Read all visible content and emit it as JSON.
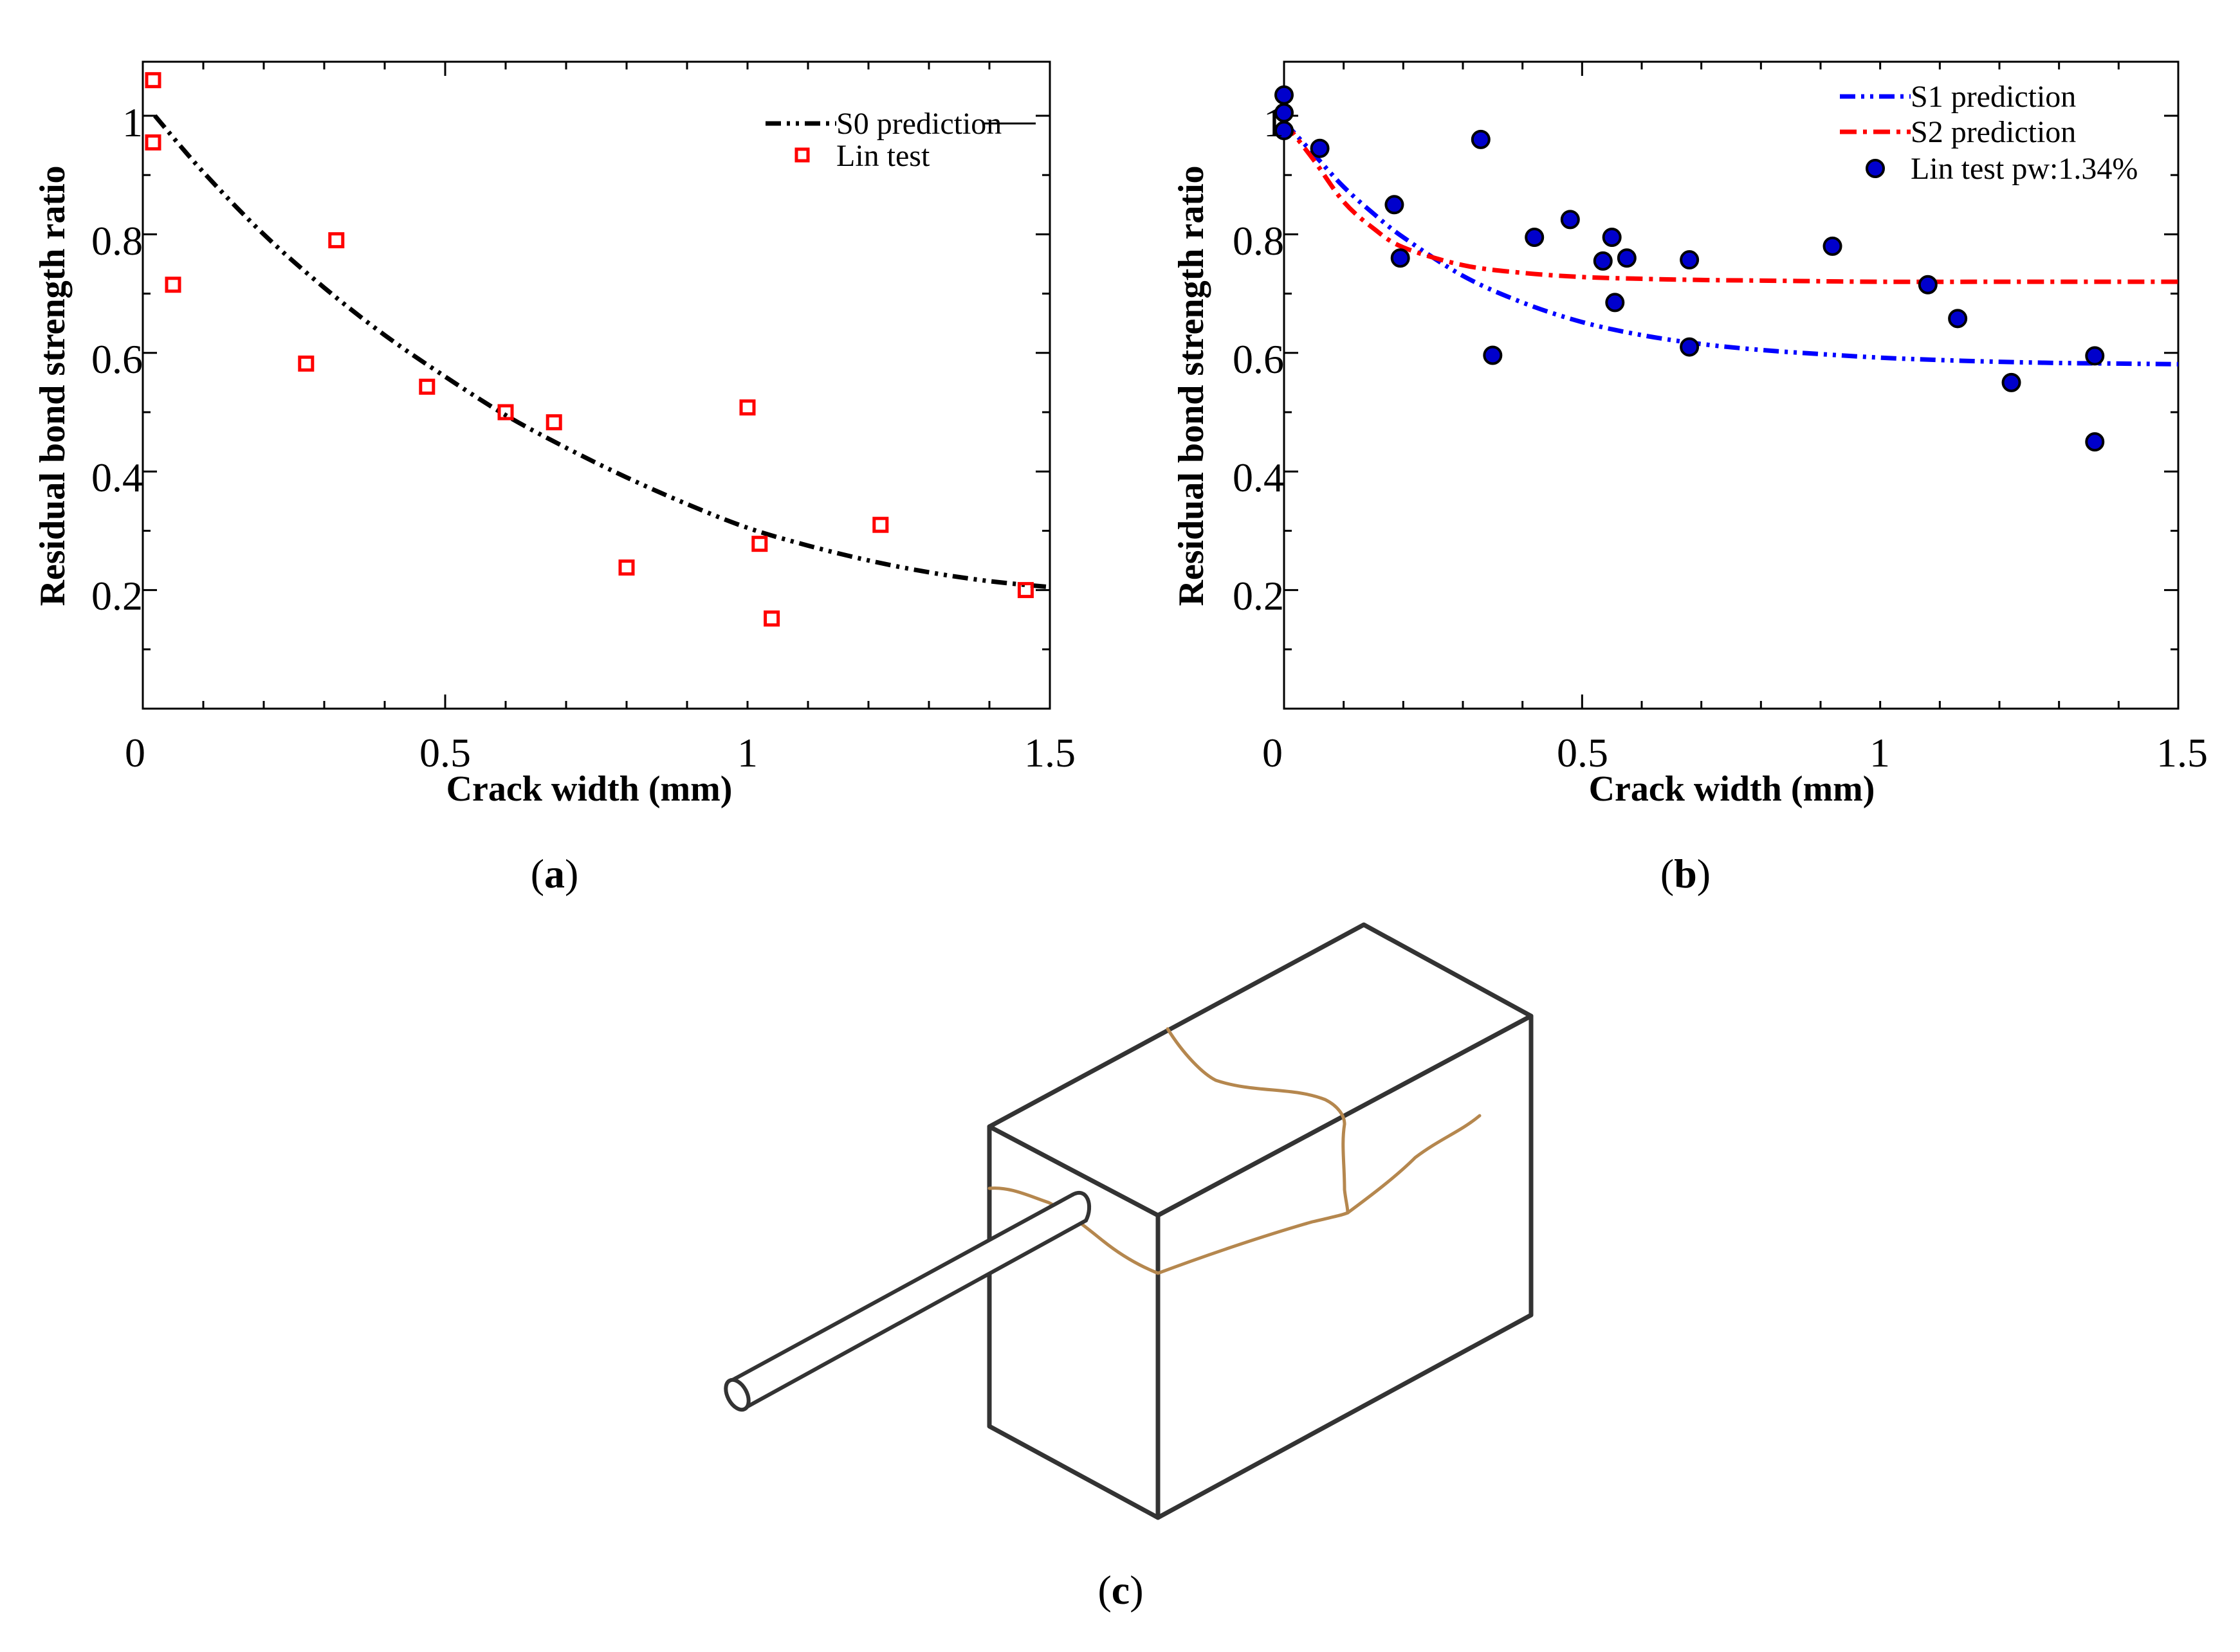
{
  "panels": {
    "a": {
      "label_open": "(",
      "label_letter": "a",
      "label_close": ")"
    },
    "b": {
      "label_open": "(",
      "label_letter": "b",
      "label_close": ")"
    },
    "c": {
      "label_open": "(",
      "label_letter": "c",
      "label_close": ")"
    }
  },
  "colors": {
    "axis": "#000000",
    "s0": "#000000",
    "s1": "#0000ff",
    "s2": "#ff0000",
    "lin_a": "#ff0000",
    "lin_b_fill": "#0000cc",
    "lin_b_stroke": "#000000",
    "crack": "#b5874e",
    "specimen": "#333333"
  },
  "chart_data": [
    {
      "type": "scatter",
      "title": "",
      "xlabel": "Crack width (mm)",
      "ylabel": "Residual bond strength ratio",
      "xlim": [
        0,
        1.5
      ],
      "ylim": [
        0,
        1.1
      ],
      "xticks": [
        0,
        0.5,
        1,
        1.5
      ],
      "xtick_labels": [
        "0",
        "0.5",
        "1",
        "1.5"
      ],
      "yticks": [
        0.2,
        0.4,
        0.6,
        0.8,
        1.0
      ],
      "ytick_labels": [
        "0.2",
        "0.4",
        "0.6",
        "0.8",
        "1"
      ],
      "legend_position": "top-right",
      "series": [
        {
          "name": "S0 prediction",
          "kind": "line",
          "style": "dash-dot-dot",
          "x": [
            0.02,
            0.1,
            0.2,
            0.3,
            0.4,
            0.5,
            0.6,
            0.7,
            0.8,
            0.9,
            1.0,
            1.1,
            1.2,
            1.3,
            1.4,
            1.5
          ],
          "y": [
            1.0,
            0.905,
            0.8,
            0.71,
            0.63,
            0.56,
            0.495,
            0.44,
            0.39,
            0.345,
            0.305,
            0.275,
            0.25,
            0.23,
            0.215,
            0.205
          ]
        },
        {
          "name": "Lin test",
          "kind": "marker",
          "marker": "square",
          "x": [
            0.017,
            0.017,
            0.05,
            0.27,
            0.32,
            0.47,
            0.6,
            0.68,
            0.8,
            1.0,
            1.02,
            1.04,
            1.22,
            1.46
          ],
          "y": [
            1.06,
            0.955,
            0.715,
            0.582,
            0.79,
            0.543,
            0.5,
            0.483,
            0.238,
            0.508,
            0.278,
            0.152,
            0.31,
            0.2
          ]
        }
      ]
    },
    {
      "type": "scatter",
      "title": "",
      "xlabel": "Crack width (mm)",
      "ylabel": "Residual bond strength ratio",
      "xlim": [
        0,
        1.5
      ],
      "ylim": [
        0,
        1.1
      ],
      "xticks": [
        0,
        0.5,
        1,
        1.5
      ],
      "xtick_labels": [
        "0",
        "0.5",
        "1",
        "1.5"
      ],
      "yticks": [
        0.2,
        0.4,
        0.6,
        0.8,
        1.0
      ],
      "ytick_labels": [
        "0.2",
        "0.4",
        "0.6",
        "0.8",
        "1"
      ],
      "legend_position": "top-right",
      "series": [
        {
          "name": "S1 prediction",
          "kind": "line",
          "style": "dash-dot-dot",
          "x": [
            0,
            0.05,
            0.1,
            0.15,
            0.2,
            0.3,
            0.4,
            0.5,
            0.6,
            0.7,
            0.8,
            0.9,
            1.0,
            1.1,
            1.2,
            1.3,
            1.4,
            1.5
          ],
          "y": [
            0.99,
            0.935,
            0.88,
            0.835,
            0.795,
            0.73,
            0.685,
            0.652,
            0.63,
            0.615,
            0.605,
            0.598,
            0.592,
            0.588,
            0.585,
            0.583,
            0.582,
            0.581
          ]
        },
        {
          "name": "S2 prediction",
          "kind": "line",
          "style": "dash-dot",
          "x": [
            0,
            0.05,
            0.1,
            0.15,
            0.2,
            0.3,
            0.4,
            0.5,
            0.6,
            0.7,
            0.8,
            1.0,
            1.2,
            1.5
          ],
          "y": [
            0.99,
            0.925,
            0.855,
            0.81,
            0.778,
            0.748,
            0.735,
            0.728,
            0.725,
            0.723,
            0.722,
            0.72,
            0.72,
            0.72
          ]
        },
        {
          "name": "Lin test pw:1.34%",
          "kind": "marker",
          "marker": "circle",
          "x": [
            0.0,
            0.0,
            0.0,
            0.06,
            0.185,
            0.195,
            0.33,
            0.35,
            0.42,
            0.48,
            0.535,
            0.55,
            0.555,
            0.575,
            0.68,
            0.68,
            0.92,
            1.08,
            1.13,
            1.22,
            1.36,
            1.36
          ],
          "y": [
            1.035,
            1.005,
            0.975,
            0.945,
            0.85,
            0.76,
            0.96,
            0.596,
            0.795,
            0.825,
            0.755,
            0.795,
            0.685,
            0.76,
            0.61,
            0.757,
            0.78,
            0.715,
            0.658,
            0.55,
            0.595,
            0.45
          ]
        }
      ]
    }
  ]
}
